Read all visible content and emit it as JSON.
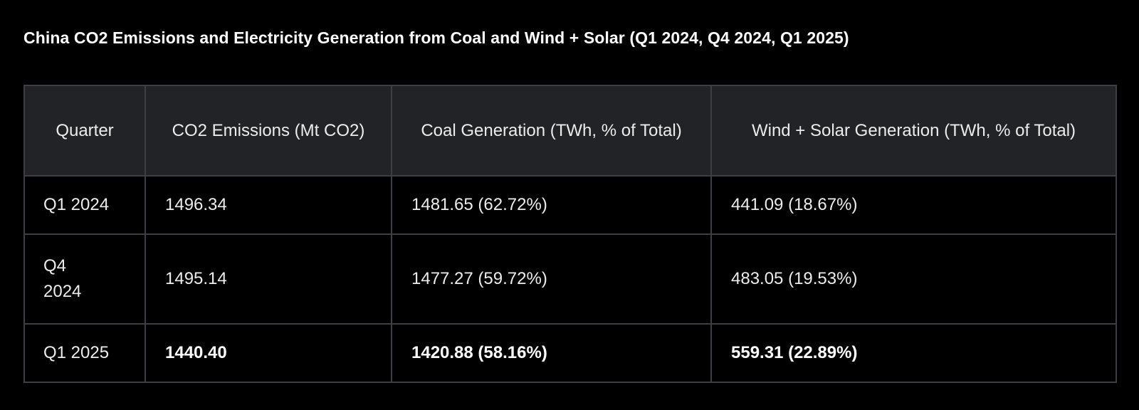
{
  "title": "China CO2 Emissions and Electricity Generation from Coal and Wind + Solar (Q1 2024, Q4 2024, Q1 2025)",
  "table": {
    "headers": [
      "Quarter",
      "CO2 Emissions (Mt CO2)",
      "Coal Generation (TWh, % of Total)",
      "Wind + Solar Generation (TWh, % of Total)"
    ],
    "rows": [
      {
        "quarter": "Q1 2024",
        "co2": "1496.34",
        "coal": "1481.65 (62.72%)",
        "wind_solar": "441.09 (18.67%)"
      },
      {
        "quarter": "Q4 2024",
        "co2": "1495.14",
        "coal": "1477.27 (59.72%)",
        "wind_solar": "483.05 (19.53%)"
      },
      {
        "quarter": "Q1 2025",
        "co2": "1440.40",
        "coal": "1420.88 (58.16%)",
        "wind_solar": "559.31 (22.89%)"
      }
    ]
  },
  "colors": {
    "background": "#000000",
    "header_background": "#212327",
    "border": "#3c3f44",
    "text": "#ececec"
  }
}
